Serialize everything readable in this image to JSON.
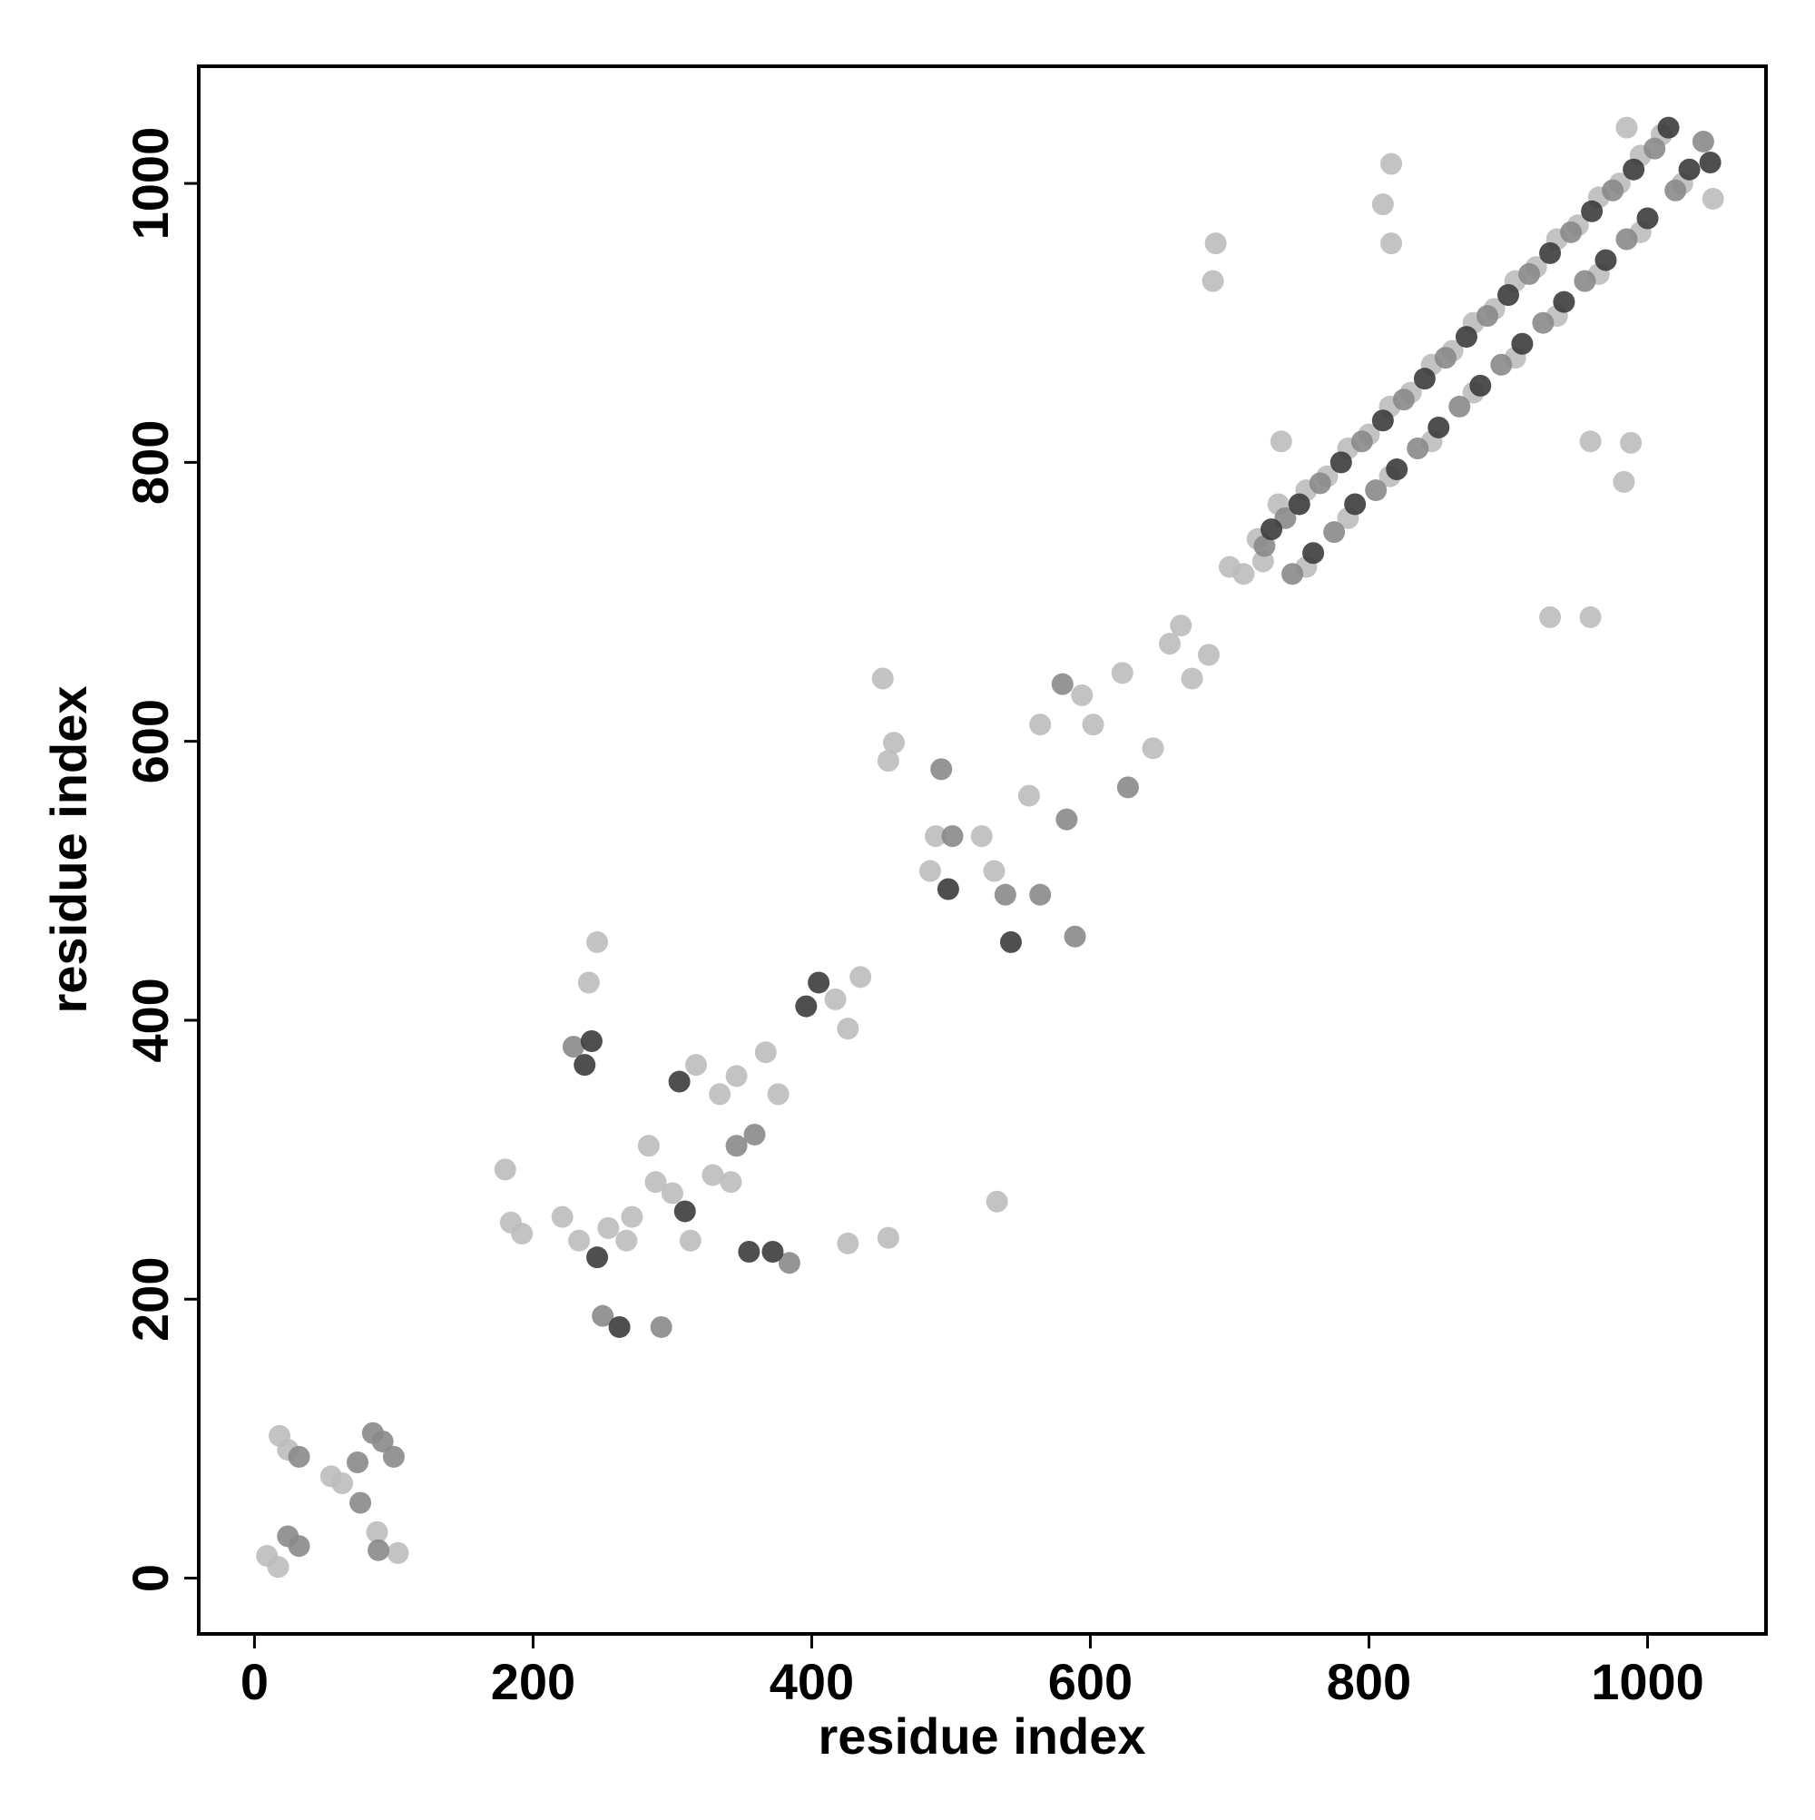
{
  "chart_data": {
    "type": "scatter",
    "x_label": "residue index",
    "y_label": "residue index",
    "xlim": [
      -40,
      1085
    ],
    "ylim": [
      -40,
      1084
    ],
    "xticks": [
      0,
      200,
      400,
      600,
      800,
      1000
    ],
    "yticks": [
      0,
      200,
      400,
      600,
      800,
      1000
    ],
    "series": [
      {
        "color": "#bdbdbd",
        "x": [
          9,
          17,
          18,
          24,
          55,
          63,
          88,
          103,
          180,
          184,
          192,
          221,
          233,
          254,
          267,
          271,
          240,
          246,
          283,
          288,
          300,
          313,
          317,
          334,
          346,
          367,
          376,
          342,
          329,
          417,
          426,
          435,
          426,
          455,
          451,
          455,
          459,
          489,
          485,
          522,
          531,
          556,
          564,
          594,
          602,
          623,
          645,
          657,
          665,
          673,
          685,
          690,
          688,
          533,
          720,
          735,
          755,
          770,
          785,
          800,
          815,
          830,
          845,
          860,
          875,
          890,
          905,
          920,
          935,
          950,
          965,
          980,
          995,
          1010,
          985,
          700,
          710,
          755,
          785,
          815,
          845,
          875,
          905,
          935,
          965,
          995,
          1025,
          816,
          810,
          816,
          930,
          959,
          959,
          988,
          983,
          1047,
          737,
          724
        ],
        "y": [
          16,
          8,
          102,
          92,
          73,
          68,
          33,
          18,
          293,
          255,
          247,
          259,
          242,
          251,
          242,
          259,
          427,
          456,
          310,
          284,
          276,
          242,
          368,
          347,
          360,
          377,
          347,
          284,
          289,
          415,
          394,
          431,
          240,
          244,
          645,
          586,
          599,
          532,
          507,
          532,
          507,
          561,
          612,
          633,
          612,
          649,
          595,
          670,
          683,
          645,
          662,
          957,
          930,
          270,
          745,
          770,
          780,
          790,
          810,
          820,
          840,
          850,
          870,
          880,
          900,
          910,
          930,
          940,
          960,
          970,
          990,
          1000,
          1020,
          1035,
          1040,
          725,
          720,
          725,
          760,
          790,
          815,
          850,
          875,
          905,
          935,
          965,
          1000,
          1014,
          985,
          957,
          689,
          689,
          815,
          814,
          786,
          989,
          815,
          729
        ]
      },
      {
        "color": "#8a8a8a",
        "x": [
          24,
          32,
          32,
          74,
          76,
          85,
          92,
          100,
          89,
          229,
          250,
          292,
          346,
          359,
          384,
          493,
          501,
          539,
          564,
          583,
          580,
          627,
          589,
          725,
          740,
          745,
          765,
          775,
          795,
          805,
          825,
          835,
          855,
          865,
          885,
          895,
          915,
          925,
          945,
          955,
          975,
          985,
          1005,
          1020,
          1040
        ],
        "y": [
          30,
          23,
          87,
          83,
          54,
          104,
          98,
          87,
          20,
          381,
          188,
          180,
          310,
          318,
          226,
          580,
          532,
          490,
          490,
          544,
          641,
          567,
          460,
          740,
          760,
          720,
          785,
          750,
          815,
          780,
          845,
          810,
          875,
          840,
          905,
          870,
          935,
          900,
          965,
          930,
          995,
          960,
          1025,
          995,
          1030
        ]
      },
      {
        "color": "#3c3c3c",
        "x": [
          237,
          242,
          246,
          262,
          355,
          372,
          305,
          309,
          396,
          405,
          498,
          543,
          730,
          750,
          760,
          780,
          790,
          810,
          820,
          840,
          850,
          870,
          880,
          900,
          910,
          930,
          940,
          960,
          970,
          990,
          1000,
          1015,
          1030,
          1045
        ],
        "y": [
          368,
          385,
          230,
          180,
          234,
          234,
          356,
          263,
          410,
          427,
          494,
          456,
          752,
          770,
          735,
          800,
          770,
          830,
          795,
          860,
          825,
          890,
          855,
          920,
          885,
          950,
          915,
          980,
          945,
          1010,
          975,
          1040,
          1010,
          1015
        ]
      }
    ]
  }
}
